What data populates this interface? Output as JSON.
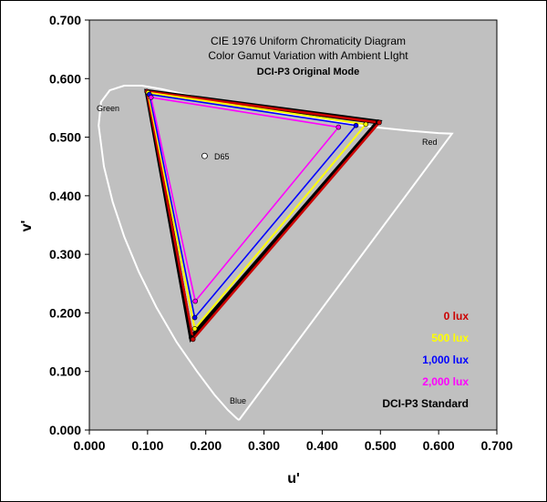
{
  "chart_data": {
    "type": "scatter",
    "title": "CIE 1976 Uniform Chromaticity Diagram",
    "subtitle": "Color Gamut Variation with Ambient LIght",
    "mode_label": "DCI-P3 Original Mode",
    "xlabel": "u'",
    "ylabel": "v'",
    "xlim": [
      0.0,
      0.7
    ],
    "ylim": [
      0.0,
      0.7
    ],
    "x_ticks": [
      "0.000",
      "0.100",
      "0.200",
      "0.300",
      "0.400",
      "0.500",
      "0.600",
      "0.700"
    ],
    "y_ticks": [
      "0.000",
      "0.100",
      "0.200",
      "0.300",
      "0.400",
      "0.500",
      "0.600",
      "0.700"
    ],
    "grid": false,
    "plot_background": "#c0c0c0",
    "legend_position": "bottom-right",
    "region_labels": {
      "green": "Green",
      "red": "Red",
      "blue": "Blue",
      "white_point": "D65"
    },
    "white_point": {
      "u": 0.198,
      "v": 0.468
    },
    "spectrum_locus": {
      "color": "#ffffff",
      "points": [
        [
          0.257,
          0.017
        ],
        [
          0.253,
          0.02
        ],
        [
          0.238,
          0.034
        ],
        [
          0.215,
          0.06
        ],
        [
          0.185,
          0.1
        ],
        [
          0.15,
          0.15
        ],
        [
          0.115,
          0.21
        ],
        [
          0.085,
          0.27
        ],
        [
          0.06,
          0.33
        ],
        [
          0.04,
          0.39
        ],
        [
          0.025,
          0.45
        ],
        [
          0.016,
          0.52
        ],
        [
          0.02,
          0.56
        ],
        [
          0.035,
          0.58
        ],
        [
          0.06,
          0.588
        ],
        [
          0.09,
          0.588
        ],
        [
          0.125,
          0.582
        ],
        [
          0.16,
          0.574
        ],
        [
          0.2,
          0.566
        ],
        [
          0.25,
          0.556
        ],
        [
          0.3,
          0.547
        ],
        [
          0.35,
          0.538
        ],
        [
          0.4,
          0.53
        ],
        [
          0.45,
          0.522
        ],
        [
          0.5,
          0.516
        ],
        [
          0.55,
          0.511
        ],
        [
          0.6,
          0.507
        ],
        [
          0.623,
          0.506
        ],
        [
          0.257,
          0.017
        ]
      ]
    },
    "series": [
      {
        "name": "DCI-P3 Standard",
        "color": "#000000",
        "points": [
          [
            0.496,
            0.526
          ],
          [
            0.099,
            0.578
          ],
          [
            0.175,
            0.158
          ]
        ]
      },
      {
        "name": "0 lux",
        "color": "#cc0000",
        "points": [
          [
            0.498,
            0.525
          ],
          [
            0.099,
            0.578
          ],
          [
            0.178,
            0.155
          ]
        ]
      },
      {
        "name": "500 lux",
        "color": "#ffff00",
        "points": [
          [
            0.475,
            0.522
          ],
          [
            0.101,
            0.576
          ],
          [
            0.181,
            0.173
          ]
        ]
      },
      {
        "name": "1,000 lux",
        "color": "#0000ff",
        "points": [
          [
            0.458,
            0.52
          ],
          [
            0.103,
            0.573
          ],
          [
            0.181,
            0.192
          ]
        ]
      },
      {
        "name": "2,000 lux",
        "color": "#ff00ff",
        "points": [
          [
            0.428,
            0.517
          ],
          [
            0.106,
            0.568
          ],
          [
            0.182,
            0.22
          ]
        ]
      }
    ],
    "legend_items": [
      {
        "label": "0 lux",
        "color": "#cc0000"
      },
      {
        "label": "500 lux",
        "color": "#ffff00"
      },
      {
        "label": "1,000 lux",
        "color": "#0000ff"
      },
      {
        "label": "2,000 lux",
        "color": "#ff00ff"
      },
      {
        "label": "DCI-P3 Standard",
        "color": "#000000"
      }
    ]
  }
}
